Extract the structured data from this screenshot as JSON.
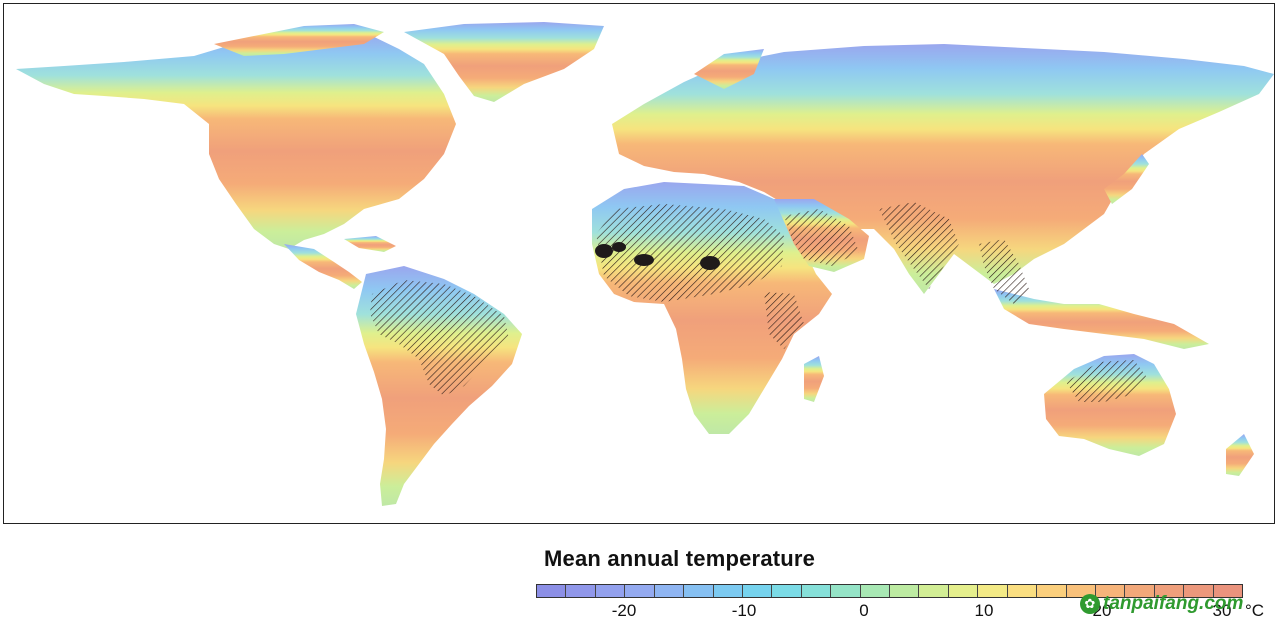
{
  "legend": {
    "title": "Mean annual temperature",
    "ticks": [
      "-20",
      "-10",
      "0",
      "10",
      "20",
      "30"
    ],
    "unit": "°C"
  },
  "watermark": {
    "text": "tanpaifang.com",
    "icon": "leaf-logo-icon"
  },
  "colorbar_bins": [
    "#8c8fe6",
    "#9097ea",
    "#93a1ee",
    "#94aaf0",
    "#8fb5f2",
    "#86c0f2",
    "#7ccaf1",
    "#76d3ee",
    "#7bdbe6",
    "#86e0d9",
    "#95e4c7",
    "#a8e8b4",
    "#bdeba2",
    "#d2ee95",
    "#e5ef8d",
    "#f3ea86",
    "#fade81",
    "#fbcf7d",
    "#f9c17b",
    "#f6b47a",
    "#f2a87a",
    "#ef9f7b",
    "#ec987c",
    "#ea937d"
  ],
  "colors": {
    "frame": "#222222",
    "hatch": "#2a1a16"
  }
}
